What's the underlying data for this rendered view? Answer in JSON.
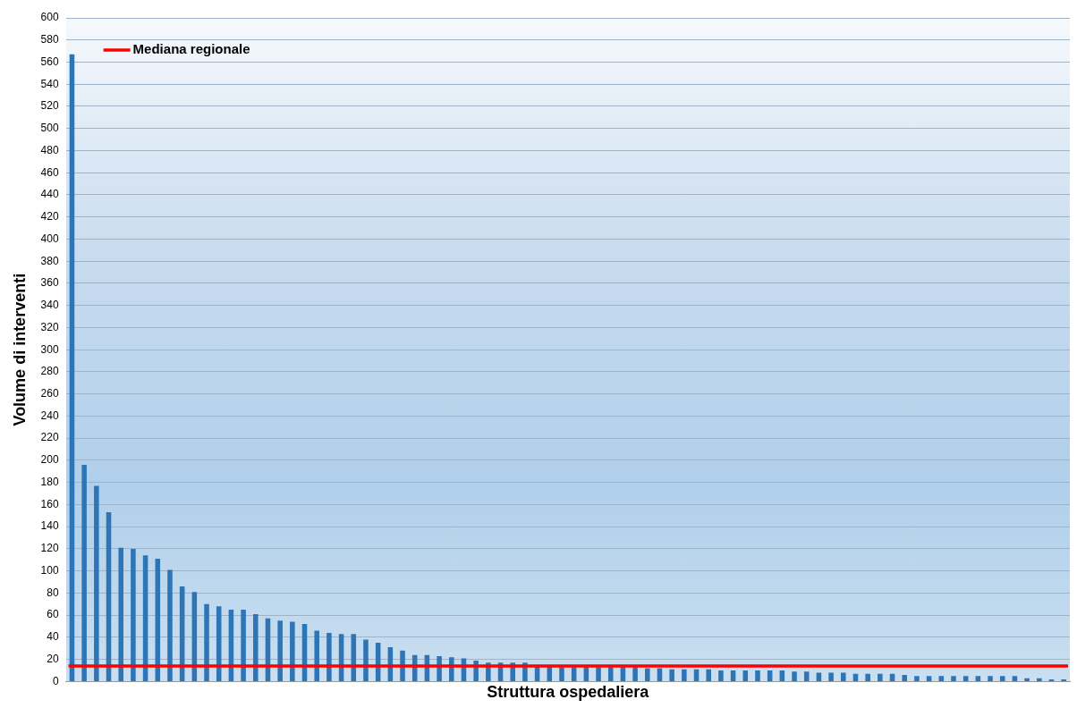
{
  "chart_data": {
    "type": "bar",
    "xlabel": "Struttura ospedaliera",
    "ylabel": "Volume di interventi",
    "categories": [
      null,
      null,
      null,
      null,
      null,
      null,
      null,
      null,
      null,
      null,
      null,
      null,
      null,
      null,
      null,
      null,
      null,
      null,
      null,
      null,
      null,
      null,
      null,
      null,
      null,
      null,
      null,
      null,
      null,
      null,
      null,
      null,
      null,
      null,
      null,
      null,
      null,
      null,
      null,
      null,
      null,
      null,
      null,
      null,
      null,
      null,
      null,
      null,
      null,
      null,
      null,
      null,
      null,
      null,
      null,
      null,
      null,
      null,
      null,
      null,
      null,
      null,
      null,
      null,
      null,
      null,
      null,
      null,
      null,
      null,
      null,
      null,
      null,
      null,
      null,
      null,
      null,
      null,
      null,
      null,
      null,
      null
    ],
    "values": [
      567,
      196,
      177,
      153,
      121,
      120,
      114,
      111,
      101,
      86,
      81,
      70,
      68,
      65,
      65,
      61,
      57,
      55,
      54,
      52,
      46,
      44,
      43,
      43,
      38,
      35,
      31,
      28,
      24,
      24,
      23,
      22,
      21,
      19,
      17,
      17,
      17,
      17,
      14,
      14,
      13,
      13,
      13,
      13,
      13,
      13,
      13,
      12,
      12,
      11,
      11,
      11,
      11,
      10,
      10,
      10,
      10,
      10,
      10,
      9,
      9,
      8,
      8,
      8,
      7,
      7,
      7,
      7,
      6,
      5,
      5,
      5,
      5,
      5,
      5,
      5,
      5,
      5,
      3,
      3,
      2,
      2
    ],
    "color": "#2e75b6",
    "ylim": [
      0,
      600
    ],
    "yticks": [
      0,
      20,
      40,
      60,
      80,
      100,
      120,
      140,
      160,
      180,
      200,
      220,
      240,
      260,
      280,
      300,
      320,
      340,
      360,
      380,
      400,
      420,
      440,
      460,
      480,
      500,
      520,
      540,
      560,
      580,
      600
    ],
    "grid": "y",
    "tick_labels": "y",
    "ref_lines": [
      {
        "axis": "y",
        "value": 14,
        "label": "Mediana regionale",
        "color": "#ff0000"
      }
    ]
  }
}
